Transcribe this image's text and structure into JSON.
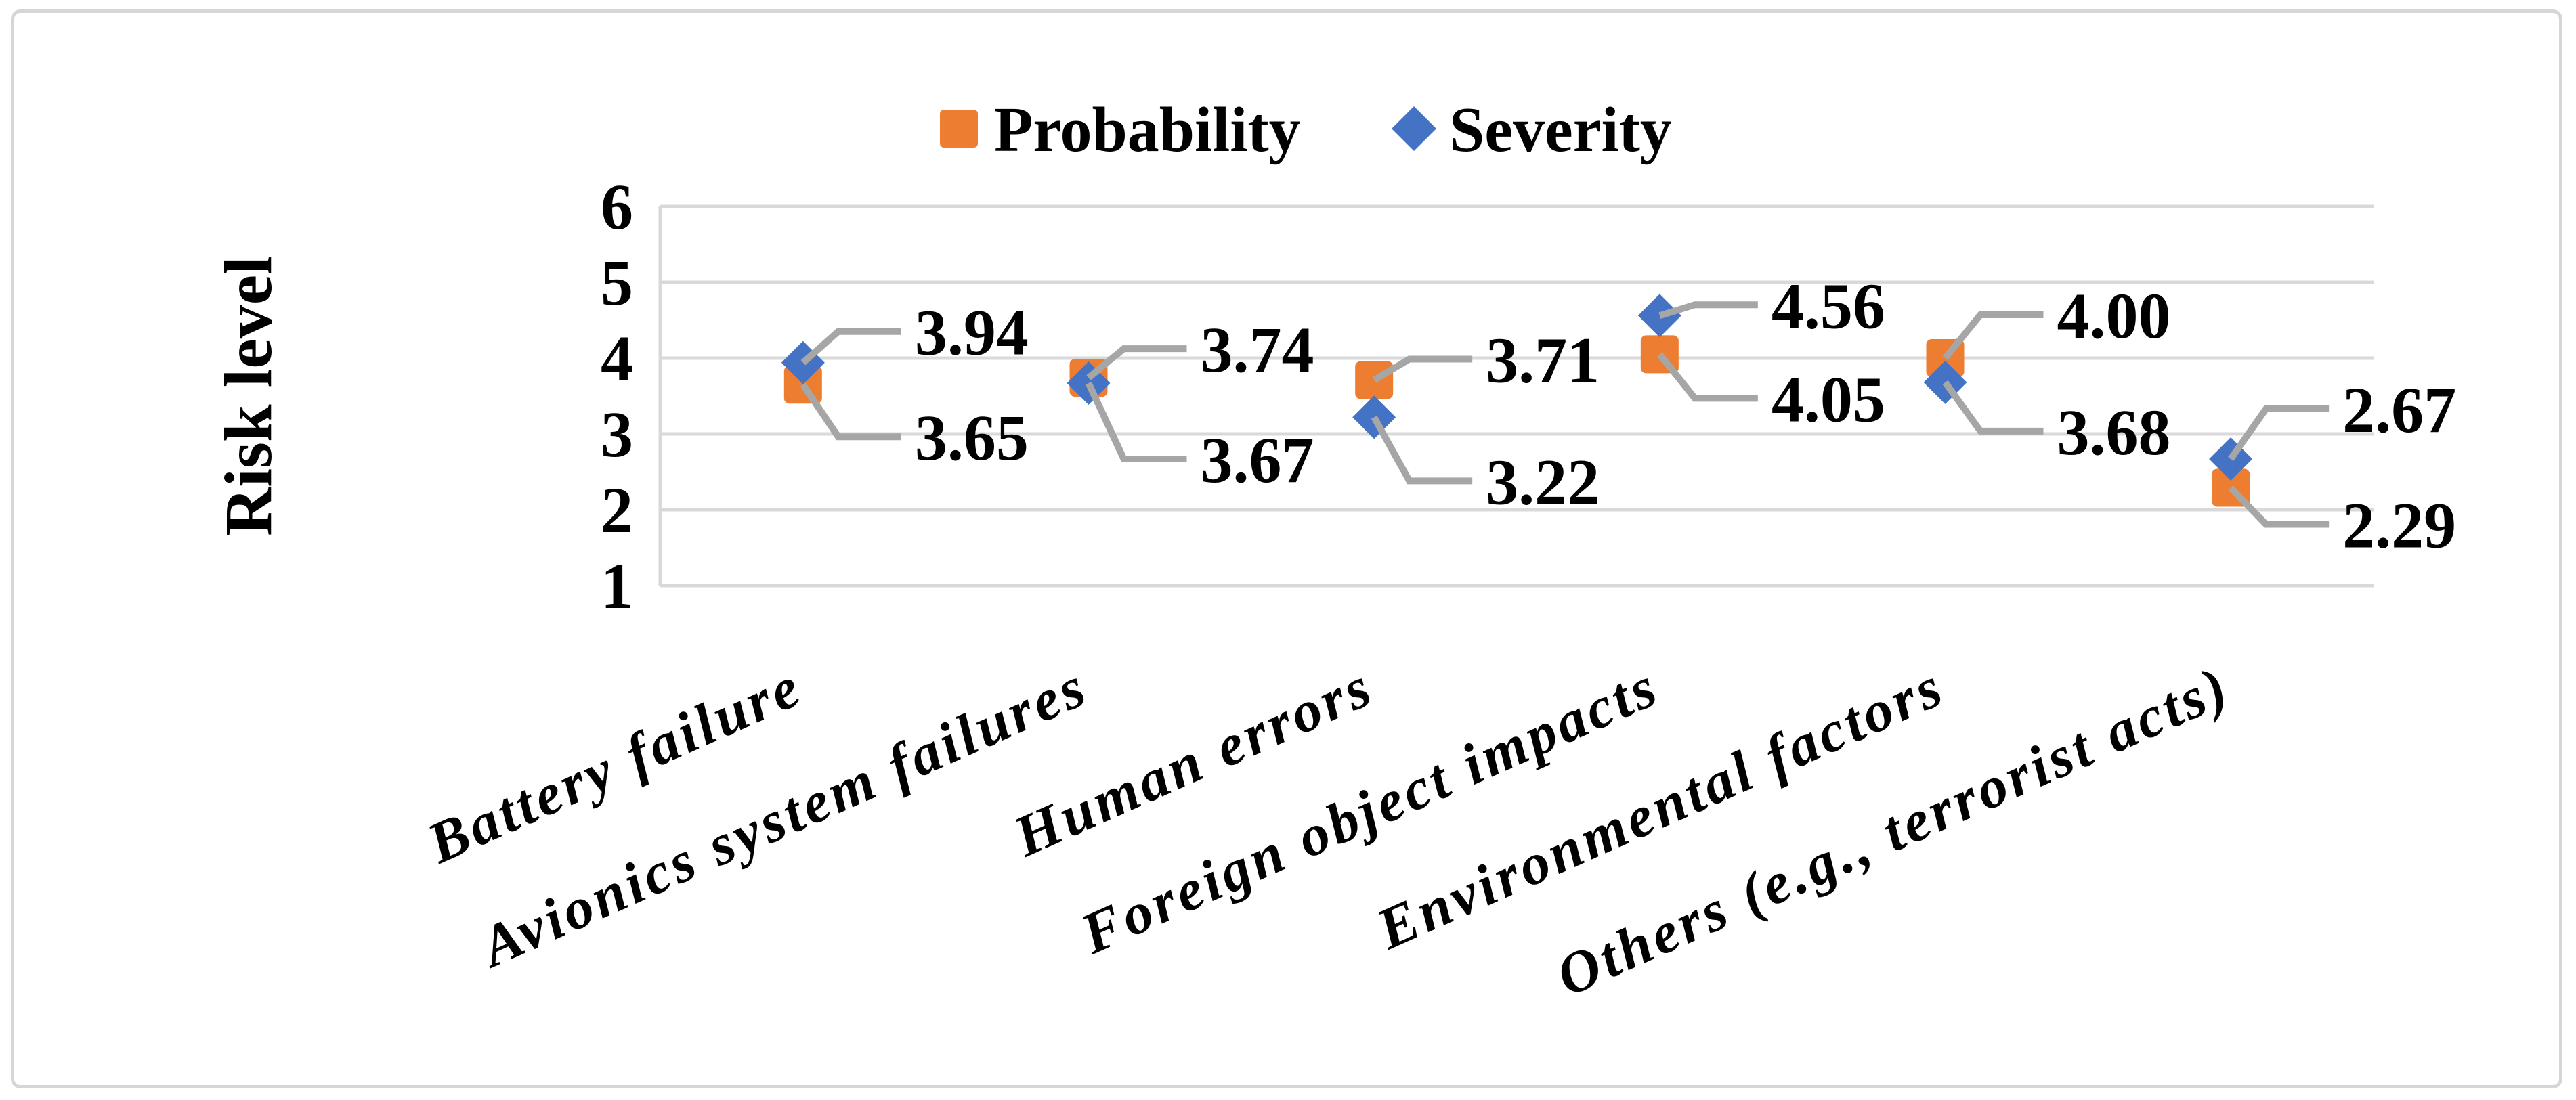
{
  "figure": {
    "background": "#ffffff",
    "frame_color": "#d6d6d6"
  },
  "legend": {
    "items": [
      {
        "label": "Probability",
        "marker": "square",
        "color": "#ED7D31"
      },
      {
        "label": "Severity",
        "marker": "diamond",
        "color": "#4472C4"
      }
    ]
  },
  "chart_data": {
    "type": "scatter",
    "title": "",
    "xlabel": "",
    "ylabel": "Risk level",
    "ylim": [
      1,
      6
    ],
    "yticks": [
      1,
      2,
      3,
      4,
      5,
      6
    ],
    "grid": "horizontal",
    "legend_position": "top-center",
    "gridline_color": "#D9D9D9",
    "leader_line_color": "#A6A6A6",
    "categories": [
      "Battery failure",
      "Avionics system failures",
      "Human errors",
      "Foreign object impacts",
      "Environmental factors",
      "Others (e.g., terrorist acts)"
    ],
    "series": [
      {
        "name": "Probability",
        "marker": "square",
        "color": "#ED7D31",
        "values": [
          3.65,
          3.74,
          3.71,
          4.05,
          4.0,
          2.29
        ],
        "labels": [
          "3.65",
          "3.74",
          "3.71",
          "4.05",
          "4.00",
          "2.29"
        ]
      },
      {
        "name": "Severity",
        "marker": "diamond",
        "color": "#4472C4",
        "values": [
          3.94,
          3.67,
          3.22,
          4.56,
          3.68,
          2.67
        ],
        "labels": [
          "3.94",
          "3.67",
          "3.22",
          "4.56",
          "3.68",
          "2.67"
        ]
      }
    ]
  }
}
